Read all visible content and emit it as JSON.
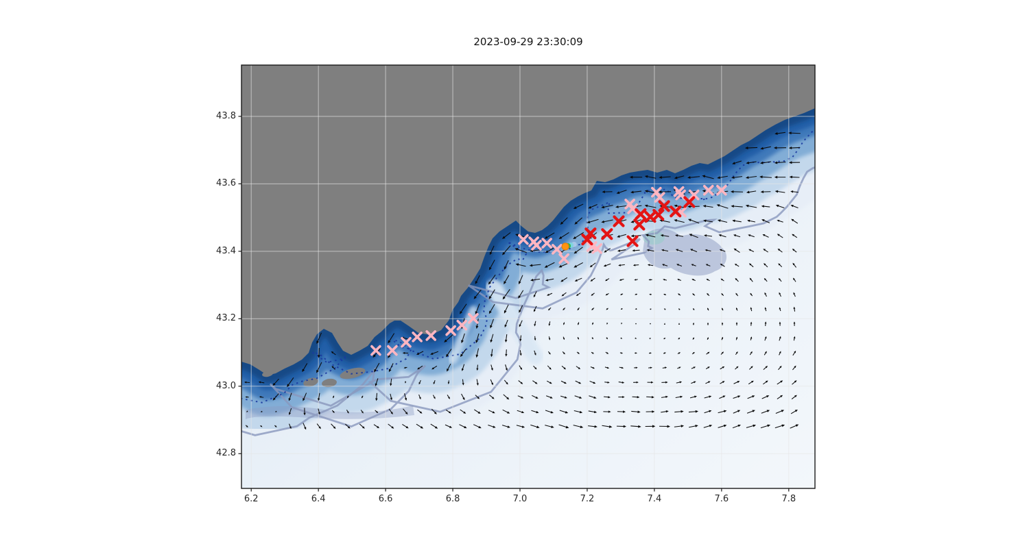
{
  "figure": {
    "title": "2023-09-29 23:30:09",
    "background_color": "#ffffff"
  },
  "axes": {
    "x_tick_labels": [
      "6.2",
      "6.4",
      "6.6",
      "6.8",
      "7.0",
      "7.2",
      "7.4",
      "7.6",
      "7.8"
    ],
    "x_tick_values": [
      6.2,
      6.4,
      6.6,
      6.8,
      7.0,
      7.2,
      7.4,
      7.6,
      7.8
    ],
    "y_tick_labels": [
      "43.8",
      "43.6",
      "43.4",
      "43.2",
      "43.0",
      "42.8"
    ],
    "y_tick_values": [
      43.8,
      43.6,
      43.4,
      43.2,
      43.0,
      42.8
    ],
    "xlim": [
      6.171,
      7.878
    ],
    "ylim": [
      42.697,
      43.952
    ],
    "grid": true
  },
  "map": {
    "land_color": "#7f7f7f",
    "offshore_color": "#f1f5fa",
    "bathymetry_gradient": [
      "#e7eef7",
      "#c3d8ec",
      "#82add6",
      "#4179ba",
      "#235fa8",
      "#174a86"
    ],
    "isobath_dotted_color": "#1a3aa0",
    "isobath_shelf_color": "#8a97bd",
    "shelf_patch_color": "#8c9ac2",
    "quiver_color": "#0a0a0a",
    "grid_color": "#e6e6e6"
  },
  "chart_data": {
    "type": "scatter",
    "title": "2023-09-29 23:30:09",
    "xlabel": "",
    "ylabel": "",
    "xlim": [
      6.171,
      7.878
    ],
    "ylim": [
      42.697,
      43.952
    ],
    "xticks": [
      6.2,
      6.4,
      6.6,
      6.8,
      7.0,
      7.2,
      7.4,
      7.6,
      7.8
    ],
    "yticks": [
      43.8,
      43.6,
      43.4,
      43.2,
      43.0,
      42.8
    ],
    "grid": true,
    "basemap": "Ligurian Sea / French Riviera coast: gray land mass, blue bathymetry shading darkest nearshore fading to pale offshore, dotted navy isobath, solid slate shelf isobath, black surface-current quiver arrows",
    "series": [
      {
        "name": "coastal-stations-pink",
        "type": "scatter",
        "marker": "x",
        "color": "#ffb6c1",
        "points": [
          [
            6.571,
            43.106
          ],
          [
            6.62,
            43.106
          ],
          [
            6.661,
            43.13
          ],
          [
            6.694,
            43.146
          ],
          [
            6.735,
            43.15
          ],
          [
            6.794,
            43.165
          ],
          [
            6.827,
            43.181
          ],
          [
            6.861,
            43.201
          ],
          [
            7.01,
            43.435
          ],
          [
            7.041,
            43.428
          ],
          [
            7.049,
            43.418
          ],
          [
            7.08,
            43.424
          ],
          [
            7.11,
            43.406
          ],
          [
            7.131,
            43.378
          ],
          [
            7.214,
            43.414
          ],
          [
            7.229,
            43.408
          ],
          [
            7.327,
            43.54
          ],
          [
            7.335,
            43.526
          ],
          [
            7.406,
            43.575
          ],
          [
            7.416,
            43.56
          ],
          [
            7.473,
            43.577
          ],
          [
            7.478,
            43.567
          ],
          [
            7.48,
            43.516
          ],
          [
            7.518,
            43.567
          ],
          [
            7.561,
            43.581
          ],
          [
            7.6,
            43.581
          ]
        ]
      },
      {
        "name": "coastal-stations-red",
        "type": "scatter",
        "marker": "x",
        "color": "#e41414",
        "points": [
          [
            7.2,
            43.435
          ],
          [
            7.21,
            43.453
          ],
          [
            7.259,
            43.451
          ],
          [
            7.294,
            43.489
          ],
          [
            7.335,
            43.43
          ],
          [
            7.355,
            43.479
          ],
          [
            7.359,
            43.51
          ],
          [
            7.388,
            43.502
          ],
          [
            7.412,
            43.508
          ],
          [
            7.429,
            43.534
          ],
          [
            7.463,
            43.518
          ],
          [
            7.504,
            43.546
          ]
        ]
      },
      {
        "name": "drifter-trajectory",
        "type": "trajectory",
        "marker": "o",
        "points": [
          {
            "lon": 7.161,
            "lat": 43.42,
            "color": "#a9c6e8"
          },
          {
            "lon": 7.151,
            "lat": 43.418,
            "color": "#7ed4e0"
          },
          {
            "lon": 7.143,
            "lat": 43.416,
            "color": "#3ab54a"
          },
          {
            "lon": 7.135,
            "lat": 43.414,
            "color": "#ff9412",
            "head": true
          }
        ]
      },
      {
        "name": "surface-current-quiver",
        "type": "quiver",
        "color": "#0a0a0a",
        "description": "black arrows of surface current field: westward coastal jet along the Riviera and offshore cyclonic gyre, arrows largest along jet and at gyre rim"
      }
    ]
  }
}
